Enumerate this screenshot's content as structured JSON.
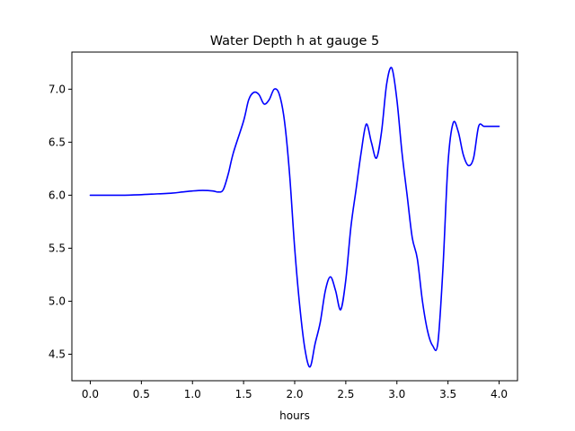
{
  "chart_data": {
    "type": "line",
    "title": "Water Depth h at gauge 5",
    "xlabel": "hours",
    "ylabel": "",
    "xlim": [
      -0.18,
      4.18
    ],
    "ylim": [
      4.25,
      7.35
    ],
    "xticks": [
      0.0,
      0.5,
      1.0,
      1.5,
      2.0,
      2.5,
      3.0,
      3.5,
      4.0
    ],
    "xtick_labels": [
      "0.0",
      "0.5",
      "1.0",
      "1.5",
      "2.0",
      "2.5",
      "3.0",
      "3.5",
      "4.0"
    ],
    "yticks": [
      4.5,
      5.0,
      5.5,
      6.0,
      6.5,
      7.0
    ],
    "ytick_labels": [
      "4.5",
      "5.0",
      "5.5",
      "6.0",
      "6.5",
      "7.0"
    ],
    "grid": false,
    "series": [
      {
        "color": "#0000ff",
        "x": [
          0.0,
          0.3,
          0.5,
          0.6,
          0.8,
          0.9,
          1.0,
          1.1,
          1.2,
          1.25,
          1.3,
          1.35,
          1.4,
          1.5,
          1.55,
          1.6,
          1.65,
          1.7,
          1.75,
          1.8,
          1.85,
          1.9,
          1.95,
          2.0,
          2.05,
          2.1,
          2.15,
          2.2,
          2.25,
          2.3,
          2.35,
          2.4,
          2.45,
          2.5,
          2.55,
          2.6,
          2.65,
          2.7,
          2.75,
          2.8,
          2.85,
          2.9,
          2.95,
          3.0,
          3.05,
          3.1,
          3.15,
          3.2,
          3.25,
          3.3,
          3.35,
          3.4,
          3.45,
          3.5,
          3.55,
          3.6,
          3.65,
          3.7,
          3.75,
          3.8,
          3.85,
          3.9,
          3.95,
          4.0
        ],
        "y": [
          6.0,
          6.0,
          6.005,
          6.01,
          6.02,
          6.03,
          6.04,
          6.045,
          6.04,
          6.03,
          6.05,
          6.2,
          6.4,
          6.7,
          6.9,
          6.97,
          6.95,
          6.86,
          6.9,
          7.0,
          6.95,
          6.7,
          6.2,
          5.5,
          4.95,
          4.55,
          4.38,
          4.6,
          4.8,
          5.1,
          5.23,
          5.1,
          4.92,
          5.2,
          5.7,
          6.05,
          6.4,
          6.67,
          6.5,
          6.35,
          6.6,
          7.05,
          7.2,
          6.9,
          6.4,
          6.0,
          5.6,
          5.4,
          5.0,
          4.72,
          4.58,
          4.6,
          5.3,
          6.3,
          6.68,
          6.6,
          6.38,
          6.28,
          6.35,
          6.65,
          6.65,
          6.65,
          6.65,
          6.65
        ]
      }
    ]
  }
}
